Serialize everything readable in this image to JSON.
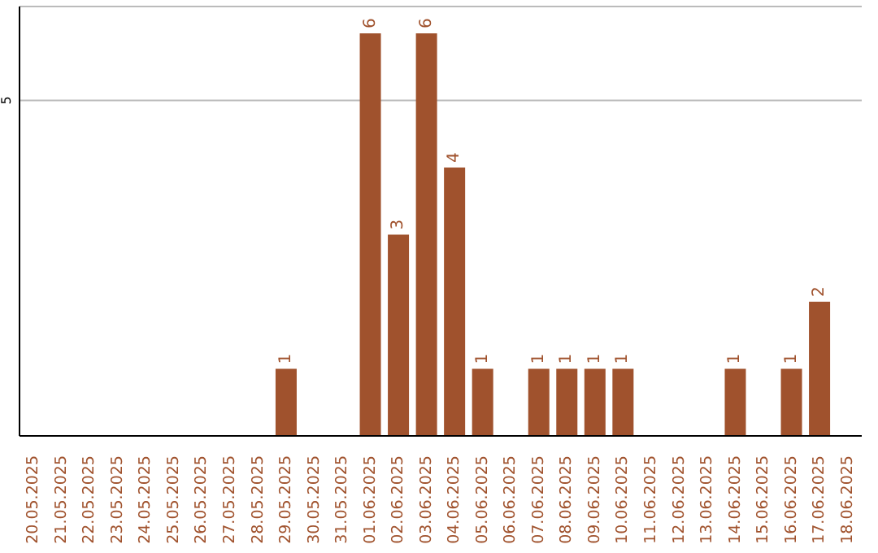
{
  "chart_data": {
    "type": "bar",
    "categories": [
      "20.05.2025",
      "21.05.2025",
      "22.05.2025",
      "23.05.2025",
      "24.05.2025",
      "25.05.2025",
      "26.05.2025",
      "27.05.2025",
      "28.05.2025",
      "29.05.2025",
      "30.05.2025",
      "31.05.2025",
      "01.06.2025",
      "02.06.2025",
      "03.06.2025",
      "04.06.2025",
      "05.06.2025",
      "06.06.2025",
      "07.06.2025",
      "08.06.2025",
      "09.06.2025",
      "10.06.2025",
      "11.06.2025",
      "12.06.2025",
      "13.06.2025",
      "14.06.2025",
      "15.06.2025",
      "16.06.2025",
      "17.06.2025",
      "18.06.2025"
    ],
    "values": [
      0,
      0,
      0,
      0,
      0,
      0,
      0,
      0,
      0,
      1,
      0,
      0,
      6,
      3,
      6,
      4,
      1,
      0,
      1,
      1,
      1,
      1,
      0,
      0,
      0,
      1,
      0,
      1,
      2,
      0
    ],
    "value_labels": [
      null,
      null,
      null,
      null,
      null,
      null,
      null,
      null,
      null,
      "1",
      null,
      null,
      "6",
      "3",
      "6",
      "4",
      "1",
      null,
      "1",
      "1",
      "1",
      "1",
      null,
      null,
      null,
      "1",
      null,
      "1",
      "2",
      null
    ],
    "color": "#a0522d",
    "ylim": [
      0,
      6.4
    ],
    "yticks": [
      5
    ],
    "grid": "y"
  }
}
